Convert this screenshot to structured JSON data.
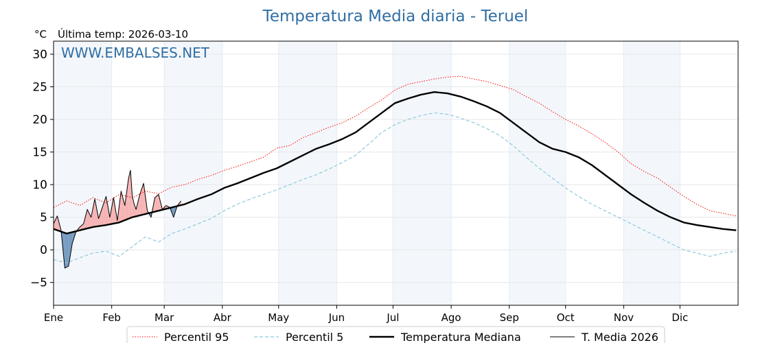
{
  "chart_data": {
    "type": "line",
    "title": "Temperatura Media diaria - Teruel",
    "unit_label": "°C",
    "last_temp_label": "Última temp: 2026-03-10",
    "watermark": "WWW.EMBALSES.NET",
    "xlabel": "",
    "ylabel": "",
    "ylim": [
      -8.5,
      32
    ],
    "xlim": [
      0,
      365
    ],
    "y_ticks": [
      -5,
      0,
      5,
      10,
      15,
      20,
      25,
      30
    ],
    "x_tick_labels": [
      "Ene",
      "Feb",
      "Mar",
      "Abr",
      "May",
      "Jun",
      "Jul",
      "Ago",
      "Sep",
      "Oct",
      "Nov",
      "Dic"
    ],
    "x_tick_days": [
      0,
      31,
      59,
      90,
      120,
      151,
      181,
      212,
      243,
      273,
      304,
      334
    ],
    "grid": true,
    "legend_position": "bottom",
    "series": [
      {
        "name": "Percentil 95",
        "color": "#ff0000",
        "style": "dotted",
        "x": [
          0,
          7,
          14,
          21,
          28,
          35,
          42,
          49,
          56,
          63,
          70,
          77,
          84,
          91,
          98,
          105,
          112,
          119,
          126,
          133,
          140,
          147,
          154,
          161,
          168,
          175,
          182,
          189,
          196,
          203,
          210,
          217,
          224,
          231,
          238,
          245,
          252,
          259,
          266,
          273,
          280,
          287,
          294,
          301,
          308,
          315,
          322,
          329,
          336,
          343,
          350,
          357,
          364
        ],
        "y": [
          6.5,
          7.5,
          6.8,
          8.0,
          7.2,
          8.5,
          8.0,
          9.0,
          8.6,
          9.6,
          10.0,
          10.8,
          11.4,
          12.2,
          12.8,
          13.5,
          14.2,
          15.6,
          16.0,
          17.2,
          18.0,
          18.8,
          19.5,
          20.5,
          21.8,
          23.0,
          24.5,
          25.4,
          25.8,
          26.2,
          26.5,
          26.6,
          26.2,
          25.8,
          25.2,
          24.6,
          23.5,
          22.5,
          21.2,
          20.0,
          19.0,
          17.8,
          16.5,
          15.0,
          13.2,
          12.0,
          11.0,
          9.6,
          8.2,
          7.0,
          6.0,
          5.6,
          5.2
        ]
      },
      {
        "name": "Percentil 5",
        "color": "#8ec9dc",
        "style": "dashed",
        "x": [
          0,
          7,
          14,
          21,
          28,
          35,
          42,
          49,
          56,
          63,
          70,
          77,
          84,
          91,
          98,
          105,
          112,
          119,
          126,
          133,
          140,
          147,
          154,
          161,
          168,
          175,
          182,
          189,
          196,
          203,
          210,
          217,
          224,
          231,
          238,
          245,
          252,
          259,
          266,
          273,
          280,
          287,
          294,
          301,
          308,
          315,
          322,
          329,
          336,
          343,
          350,
          357,
          364
        ],
        "y": [
          -1.5,
          -2.0,
          -1.2,
          -0.5,
          -0.2,
          -1.0,
          0.5,
          2.0,
          1.2,
          2.5,
          3.2,
          4.0,
          4.8,
          6.0,
          7.0,
          7.8,
          8.5,
          9.2,
          10.0,
          10.8,
          11.5,
          12.4,
          13.4,
          14.5,
          16.2,
          18.0,
          19.2,
          20.0,
          20.6,
          21.0,
          20.8,
          20.2,
          19.5,
          18.6,
          17.5,
          16.0,
          14.2,
          12.5,
          11.0,
          9.5,
          8.2,
          7.0,
          6.0,
          5.0,
          4.0,
          3.0,
          2.0,
          1.0,
          0.0,
          -0.5,
          -1.0,
          -0.5,
          -0.2
        ]
      },
      {
        "name": "Temperatura Mediana",
        "color": "#000000",
        "style": "solid-thick",
        "x": [
          0,
          7,
          14,
          21,
          28,
          35,
          42,
          49,
          56,
          63,
          70,
          77,
          84,
          91,
          98,
          105,
          112,
          119,
          126,
          133,
          140,
          147,
          154,
          161,
          168,
          175,
          182,
          189,
          196,
          203,
          210,
          217,
          224,
          231,
          238,
          245,
          252,
          259,
          266,
          273,
          280,
          287,
          294,
          301,
          308,
          315,
          322,
          329,
          336,
          343,
          350,
          357,
          364
        ],
        "y": [
          3.2,
          2.5,
          3.0,
          3.5,
          3.8,
          4.2,
          5.0,
          5.5,
          6.0,
          6.5,
          7.0,
          7.8,
          8.5,
          9.5,
          10.2,
          11.0,
          11.8,
          12.5,
          13.5,
          14.5,
          15.5,
          16.2,
          17.0,
          18.0,
          19.5,
          21.0,
          22.5,
          23.2,
          23.8,
          24.2,
          24.0,
          23.5,
          22.8,
          22.0,
          21.0,
          19.5,
          18.0,
          16.5,
          15.5,
          15.0,
          14.2,
          13.0,
          11.5,
          10.0,
          8.5,
          7.2,
          6.0,
          5.0,
          4.2,
          3.8,
          3.5,
          3.2,
          3.0
        ]
      },
      {
        "name": "T. Media 2026",
        "color": "#000000",
        "style": "solid-thin",
        "x": [
          0,
          2,
          4,
          6,
          8,
          10,
          12,
          14,
          16,
          18,
          20,
          22,
          24,
          26,
          28,
          30,
          32,
          34,
          36,
          38,
          40,
          41,
          42,
          43,
          44,
          46,
          48,
          50,
          52,
          54,
          56,
          58,
          60,
          62,
          64,
          66,
          68
        ],
        "y": [
          4.0,
          5.2,
          3.0,
          -2.8,
          -2.5,
          1.0,
          2.8,
          3.5,
          4.0,
          6.2,
          5.0,
          7.8,
          4.8,
          6.5,
          8.2,
          5.0,
          8.0,
          4.5,
          9.0,
          6.8,
          11.0,
          12.2,
          8.2,
          7.0,
          6.2,
          8.5,
          10.2,
          6.0,
          5.0,
          8.0,
          8.5,
          6.2,
          6.8,
          6.5,
          5.0,
          6.8,
          7.5
        ]
      }
    ]
  }
}
